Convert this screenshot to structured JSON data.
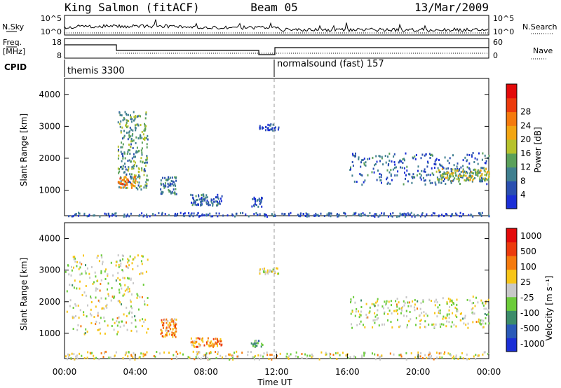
{
  "header": {
    "station": "King Salmon (fitACF)",
    "beam": "Beam 05",
    "date": "13/Mar/2009"
  },
  "top_panels": {
    "nsky_label": "N.Sky",
    "nsky_ticks": [
      "10^5",
      "10^0"
    ],
    "nsearch_label": "N.Search",
    "nsearch_ticks": [
      "10^5",
      "10^0"
    ],
    "freq_label": "Freq.",
    "freq_unit": "[MHz]",
    "freq_ticks": [
      "18",
      "8"
    ],
    "nave_label": "Nave",
    "nave_ticks": [
      "60",
      "0"
    ],
    "cpid_label": "CPID",
    "cpid_entries": [
      "themis 3300",
      "normalsound (fast) 157"
    ]
  },
  "chart_data": [
    {
      "type": "heatmap",
      "name": "power",
      "ylabel": "Slant Range [km]",
      "y_ticks": [
        "1000",
        "2000",
        "3000",
        "4000"
      ],
      "ylim": [
        200,
        4500
      ],
      "colorbar_label": "Power [dB]",
      "colorbar_ticks": [
        "4",
        "8",
        "12",
        "16",
        "20",
        "24",
        "28"
      ],
      "colors": [
        "#1b2fd6",
        "#2a4fb0",
        "#3f7f8f",
        "#5aa05a",
        "#b6c22c",
        "#f2a512",
        "#f57a0d",
        "#ec3a0c",
        "#e30a0a"
      ],
      "regions": [
        {
          "x0": 3.0,
          "x1": 4.7,
          "y0": 1000,
          "y1": 3500,
          "level": 0.35
        },
        {
          "x0": 3.0,
          "x1": 4.0,
          "y0": 1100,
          "y1": 1450,
          "level": 0.7
        },
        {
          "x0": 5.4,
          "x1": 6.3,
          "y0": 900,
          "y1": 1450,
          "level": 0.25
        },
        {
          "x0": 7.1,
          "x1": 8.9,
          "y0": 550,
          "y1": 900,
          "level": 0.2
        },
        {
          "x0": 10.5,
          "x1": 11.2,
          "y0": 500,
          "y1": 800,
          "level": 0.15
        },
        {
          "x0": 11.0,
          "x1": 12.1,
          "y0": 2900,
          "y1": 3100,
          "level": 0.15
        },
        {
          "x0": 16.1,
          "x1": 24.0,
          "y0": 1200,
          "y1": 2200,
          "level": 0.2
        },
        {
          "x0": 21.0,
          "x1": 24.0,
          "y0": 1300,
          "y1": 1700,
          "level": 0.45
        },
        {
          "x0": 0.0,
          "x1": 24.0,
          "y0": 200,
          "y1": 320,
          "level": 0.15
        }
      ]
    },
    {
      "type": "heatmap",
      "name": "velocity",
      "ylabel": "Slant Range [km]",
      "y_ticks": [
        "1000",
        "2000",
        "3000",
        "4000"
      ],
      "ylim": [
        200,
        4500
      ],
      "xlabel": "Time UT",
      "x_ticks": [
        "00:00",
        "04:00",
        "08:00",
        "12:00",
        "16:00",
        "20:00",
        "00:00"
      ],
      "xlim": [
        0,
        24
      ],
      "colorbar_label": "Velocity [m s⁻¹]",
      "colorbar_ticks": [
        "1000",
        "500",
        "100",
        "25",
        "-25",
        "-100",
        "-500",
        "-1000"
      ],
      "colors": [
        "#1b2fd6",
        "#2a5ab8",
        "#3c8c6a",
        "#6ccc3a",
        "#c8c8c8",
        "#f7c518",
        "#f57a0d",
        "#ec3a0c",
        "#e30a0a"
      ],
      "regions": [
        {
          "x0": 0.0,
          "x1": 4.7,
          "y0": 1000,
          "y1": 3500,
          "level": 0.5
        },
        {
          "x0": 5.4,
          "x1": 6.3,
          "y0": 900,
          "y1": 1500,
          "level": 0.7
        },
        {
          "x0": 7.1,
          "x1": 8.9,
          "y0": 600,
          "y1": 900,
          "level": 0.7
        },
        {
          "x0": 10.5,
          "x1": 11.2,
          "y0": 600,
          "y1": 800,
          "level": 0.35
        },
        {
          "x0": 11.0,
          "x1": 12.1,
          "y0": 2900,
          "y1": 3100,
          "level": 0.5
        },
        {
          "x0": 16.1,
          "x1": 24.0,
          "y0": 1200,
          "y1": 2200,
          "level": 0.5
        },
        {
          "x0": 0.0,
          "x1": 24.0,
          "y0": 200,
          "y1": 450,
          "level": 0.55
        }
      ]
    }
  ]
}
